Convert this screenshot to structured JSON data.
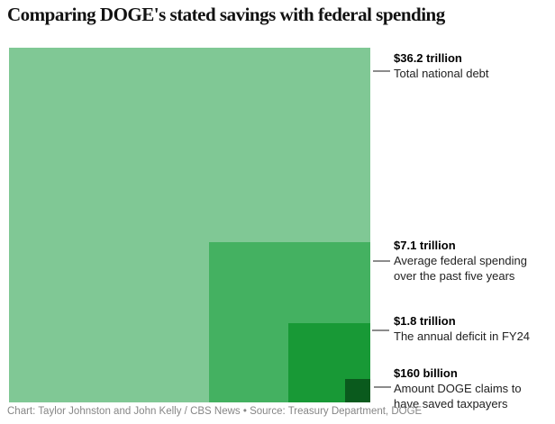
{
  "title": "Comparing DOGE's stated savings with federal spending",
  "footer": "Chart: Taylor Johnston and John Kelly / CBS News • Source: Treasury Department, DOGE",
  "chart_data": {
    "type": "area",
    "variant": "nested-squares",
    "title": "Comparing DOGE's stated savings with federal spending",
    "unit": "USD trillions",
    "anchor": "bottom-right",
    "grid": false,
    "legend_position": "right-annotations",
    "items": [
      {
        "name": "Total national debt",
        "value_label": "$36.2 trillion",
        "value_trillions": 36.2,
        "color": "#80c895"
      },
      {
        "name": "Average federal spending over the past five years",
        "value_label": "$7.1 trillion",
        "value_trillions": 7.1,
        "color": "#44b161"
      },
      {
        "name": "The annual deficit in FY24",
        "value_label": "$1.8 trillion",
        "value_trillions": 1.8,
        "color": "#189936"
      },
      {
        "name": "Amount DOGE claims to have saved taxpayers",
        "value_label": "$160 billion",
        "value_trillions": 0.16,
        "color": "#0a5a1d"
      }
    ]
  },
  "annotations": [
    {
      "value": "$36.2 trillion",
      "lines": [
        "Total national debt"
      ]
    },
    {
      "value": "$7.1 trillion",
      "lines": [
        "Average federal spending",
        "over the past five years"
      ]
    },
    {
      "value": "$1.8 trillion",
      "lines": [
        "The annual deficit in FY24"
      ]
    },
    {
      "value": "$160 billion",
      "lines": [
        "Amount DOGE claims to",
        "have saved taxpayers"
      ]
    }
  ]
}
